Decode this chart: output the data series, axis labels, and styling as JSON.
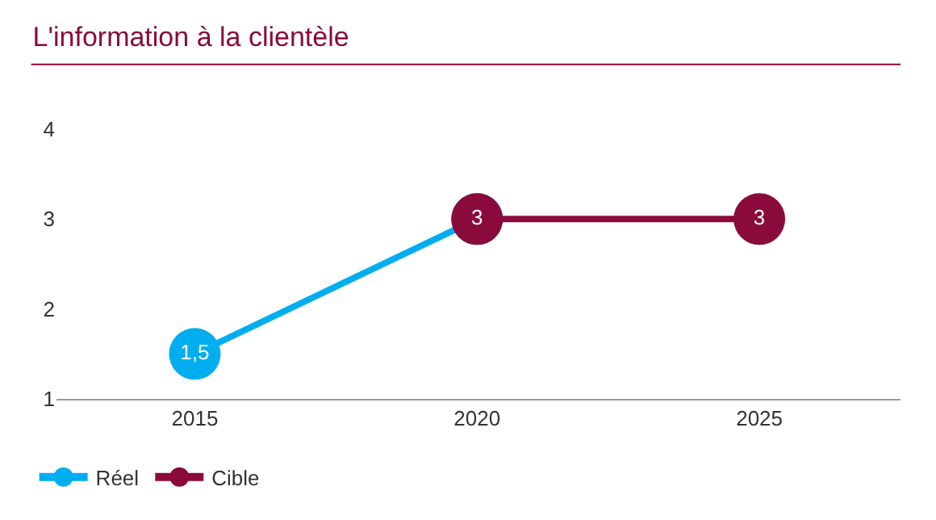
{
  "chart_data": {
    "type": "line",
    "title": "L'information à la clientèle",
    "categories": [
      "2015",
      "2020",
      "2025"
    ],
    "series": [
      {
        "name": "Réel",
        "color": "#00aeef",
        "values": [
          1.5,
          3,
          null
        ],
        "value_labels": [
          "1,5",
          null,
          null
        ]
      },
      {
        "name": "Cible",
        "color": "#8a0a3c",
        "values": [
          null,
          3,
          3
        ],
        "value_labels": [
          null,
          "3",
          "3"
        ]
      }
    ],
    "ylim": [
      1,
      4
    ],
    "yticks": [
      1,
      2,
      3,
      4
    ],
    "legend": "bottom left",
    "marker": "circle",
    "line_style": "solid"
  }
}
